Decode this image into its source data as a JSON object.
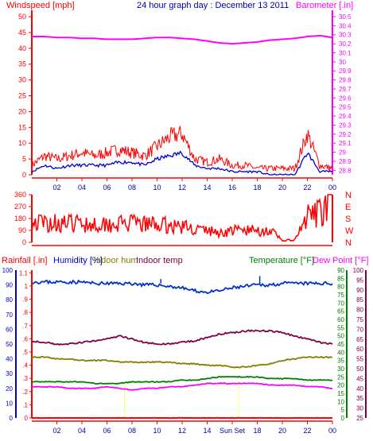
{
  "chart_data": [
    {
      "type": "line",
      "panel": "wind-barometer",
      "title": "24 hour graph day : December 13 2011",
      "left_axis_label": "Windspeed [mph]",
      "right_axis_label": "Barometer [.in]",
      "x_ticks": [
        "02",
        "04",
        "06",
        "08",
        "10",
        "12",
        "14",
        "16",
        "18",
        "20",
        "22",
        "00"
      ],
      "left_ticks": [
        "0",
        "5",
        "10",
        "15",
        "20",
        "25",
        "30",
        "35",
        "40",
        "45",
        "50"
      ],
      "left_ylim": [
        0,
        50
      ],
      "right_ticks": [
        "28.8",
        "28.9",
        "29",
        "29.1",
        "29.2",
        "29.3",
        "29.4",
        "29.5",
        "29.6",
        "29.7",
        "29.8",
        "29.9",
        "30",
        "30.1",
        "30.2",
        "30.3",
        "30.4",
        "30.5"
      ],
      "right_ylim": [
        28.75,
        30.5
      ],
      "x": [
        0,
        1,
        2,
        3,
        4,
        5,
        6,
        7,
        8,
        9,
        10,
        11,
        12,
        13,
        14,
        15,
        16,
        17,
        18,
        19,
        20,
        21,
        22,
        23,
        24
      ],
      "series": [
        {
          "axis": "right",
          "color": "#ff00ff",
          "values": [
            30.28,
            30.28,
            30.27,
            30.27,
            30.26,
            30.26,
            30.25,
            30.25,
            30.25,
            30.26,
            30.27,
            30.27,
            30.26,
            30.25,
            30.23,
            30.21,
            30.2,
            30.21,
            30.22,
            30.24,
            30.25,
            30.26,
            30.28,
            30.29,
            30.27
          ]
        },
        {
          "axis": "left",
          "color": "#ff0000",
          "values": [
            3,
            6,
            5,
            6,
            7,
            6,
            7,
            8,
            7,
            6,
            9,
            12,
            13,
            5,
            4,
            5,
            3,
            3,
            2,
            2,
            2,
            2,
            13,
            3,
            2
          ]
        },
        {
          "axis": "left",
          "color": "#0000cc",
          "values": [
            1,
            3,
            2,
            3,
            3,
            3,
            3,
            4,
            4,
            3,
            5,
            6,
            7,
            3,
            2,
            2,
            1,
            1,
            1,
            0,
            0,
            0,
            7,
            1,
            1
          ]
        }
      ]
    },
    {
      "type": "line",
      "panel": "wind-direction",
      "left_ticks": [
        "0",
        "90",
        "180",
        "270",
        "360"
      ],
      "left_ylim": [
        0,
        360
      ],
      "right_ticks": [
        "N",
        "W",
        "S",
        "E",
        "N"
      ],
      "x": [
        0,
        1,
        2,
        3,
        4,
        5,
        6,
        7,
        8,
        9,
        10,
        11,
        12,
        13,
        14,
        15,
        16,
        17,
        18,
        19,
        20,
        21,
        22,
        23,
        24
      ],
      "series": [
        {
          "color": "#ff0000",
          "values": [
            150,
            145,
            150,
            140,
            145,
            140,
            145,
            140,
            140,
            135,
            135,
            125,
            120,
            100,
            90,
            70,
            90,
            90,
            90,
            90,
            15,
            15,
            190,
            220,
            330
          ]
        }
      ]
    },
    {
      "type": "line",
      "panel": "rain-humidity-temperature",
      "left_labels": [
        "Rainfall [.in]",
        "Humidity [%]",
        "Indoor hum",
        "Indoor temp"
      ],
      "right_labels": [
        "Temperature [°F]",
        "Dew Point [°F]"
      ],
      "rain_ticks": [
        "0",
        ".1",
        ".2",
        ".3",
        ".4",
        ".5",
        ".6",
        ".7",
        ".8",
        ".9",
        "1",
        "1.1"
      ],
      "humidity_ticks": [
        "0",
        "10",
        "20",
        "30",
        "40",
        "50",
        "60",
        "70",
        "80",
        "90",
        "100"
      ],
      "humidity_ylim": [
        0,
        100
      ],
      "temp_ticks": [
        "0",
        "5",
        "10",
        "15",
        "20",
        "25",
        "30",
        "35",
        "40",
        "45",
        "50",
        "55",
        "60",
        "65",
        "70",
        "75",
        "80",
        "85",
        "90"
      ],
      "temp_ylim": [
        0,
        90
      ],
      "dew_ticks": [
        "25",
        "30",
        "35",
        "40",
        "45",
        "50",
        "55",
        "60",
        "65",
        "70",
        "75",
        "80",
        "85",
        "90",
        "95",
        "100"
      ],
      "x_ticks": [
        "02",
        "04",
        "06",
        "08",
        "10",
        "12",
        "14",
        "Sun Set",
        "18",
        "20",
        "22",
        "00"
      ],
      "x": [
        0,
        1,
        2,
        3,
        4,
        5,
        6,
        7,
        8,
        9,
        10,
        11,
        12,
        13,
        14,
        15,
        16,
        17,
        18,
        19,
        20,
        21,
        22,
        23,
        24
      ],
      "series": [
        {
          "color": "#0033cc",
          "values": [
            92,
            92,
            92,
            92,
            92,
            91,
            91,
            91,
            91,
            90,
            90,
            89,
            88,
            86,
            85,
            86,
            88,
            89,
            90,
            90,
            91,
            91,
            91,
            91,
            91
          ]
        },
        {
          "color": "#800040",
          "values": [
            47,
            46,
            45,
            45,
            46,
            47,
            48,
            50,
            48,
            46,
            45,
            45,
            46,
            47,
            49,
            51,
            52,
            53,
            53,
            53,
            52,
            50,
            48,
            46,
            45
          ]
        },
        {
          "color": "#808000",
          "values": [
            37,
            37,
            36,
            36,
            35,
            35,
            35,
            34,
            34,
            34,
            34,
            34,
            33,
            33,
            32,
            32,
            31,
            31,
            32,
            33,
            35,
            36,
            37,
            37,
            37
          ]
        },
        {
          "color": "#008000",
          "values": [
            22,
            22,
            22,
            22,
            22,
            21,
            21,
            21,
            22,
            22,
            22,
            22,
            23,
            23,
            24,
            25,
            25,
            25,
            25,
            24,
            24,
            24,
            23,
            23,
            23
          ]
        },
        {
          "color": "#ff00ff",
          "values": [
            19,
            19,
            19,
            18,
            18,
            18,
            19,
            18,
            17,
            18,
            18,
            19,
            19,
            20,
            21,
            21,
            21,
            21,
            21,
            20,
            20,
            20,
            19,
            19,
            18
          ]
        },
        {
          "color": "#ff0000",
          "values": [
            0,
            0,
            0,
            0,
            0,
            0,
            0,
            0,
            0,
            0,
            0,
            0,
            0,
            0,
            0,
            0,
            0,
            0,
            0,
            0,
            0,
            0,
            0,
            0,
            0
          ]
        }
      ]
    }
  ]
}
